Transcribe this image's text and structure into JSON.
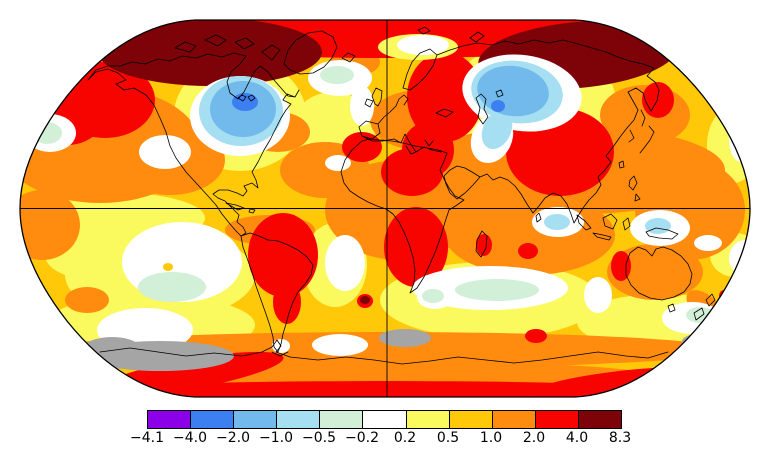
{
  "window": {
    "background": "#FFFFFF"
  },
  "map": {
    "palette": {
      "gold": "#FFC808",
      "yellow": "#FAFA5F",
      "orange": "#FF8C0F",
      "white": "#FFFFFF",
      "mint": "#D2EFD7",
      "cyan": "#A6DFF2",
      "lightblue": "#72BAEB",
      "blue": "#3C7FF0",
      "red": "#F80400",
      "darkred": "#7E0308",
      "gray": "#A5A5A5",
      "coast": "#000000",
      "outline": "#000000",
      "grid": "#000000"
    }
  },
  "colorbar": {
    "tick_labels": [
      "−4.1",
      "−4.0",
      "−2.0",
      "−1.0",
      "−0.5",
      "−0.2",
      "0.2",
      "0.5",
      "1.0",
      "2.0",
      "4.0",
      "8.3"
    ],
    "segment_colors": [
      "#8B00E6",
      "#3C7FF0",
      "#72BAEB",
      "#A6DFF2",
      "#D2EFD7",
      "#FFFFFF",
      "#FAFA5F",
      "#FFC808",
      "#FF8C0F",
      "#F80400",
      "#7E0308"
    ]
  },
  "chart_data": {
    "type": "heatmap",
    "subtype": "filled-contour world map of temperature anomalies",
    "projection": "robinson",
    "title": "",
    "legend_position": "bottom",
    "colorbar_levels": [
      -4.1,
      -4.0,
      -2.0,
      -1.0,
      -0.5,
      -0.2,
      0.2,
      0.5,
      1.0,
      2.0,
      4.0,
      8.3
    ],
    "colorbar_colors": [
      "#8B00E6",
      "#3C7FF0",
      "#72BAEB",
      "#A6DFF2",
      "#D2EFD7",
      "#FFFFFF",
      "#FAFA5F",
      "#FFC808",
      "#FF8C0F",
      "#F80400",
      "#7E0308"
    ],
    "no_data_color": "#A5A5A5",
    "gridlines": "equator and prime meridian only",
    "notable_regions": [
      {
        "region": "Arctic Canada and Greenland",
        "value_bin": "4.0 to 8.3"
      },
      {
        "region": "Arctic Siberia",
        "value_bin": "4.0 to 8.3"
      },
      {
        "region": "Eastern North America / Great Lakes",
        "value_bin": "-4.0 to -1.0"
      },
      {
        "region": "Central Asia near Caspian",
        "value_bin": "-4.0 to -0.5"
      },
      {
        "region": "Eastern Europe",
        "value_bin": "2.0 to 4.0"
      },
      {
        "region": "Mongolia / northern China / Tibet",
        "value_bin": "2.0 to 4.0"
      },
      {
        "region": "Sahara and central Africa",
        "value_bin": "2.0 to 4.0"
      },
      {
        "region": "Southern Africa and Madagascar",
        "value_bin": "2.0 to 4.0"
      },
      {
        "region": "Central South America",
        "value_bin": "2.0 to 4.0"
      },
      {
        "region": "Bering Sea / Alaska",
        "value_bin": "2.0 to 4.0"
      },
      {
        "region": "Western Australia",
        "value_bin": "2.0 to 4.0"
      },
      {
        "region": "Antarctic coastal band",
        "value_bin": "2.0 to 4.0"
      },
      {
        "region": "Most mid-latitude oceans",
        "value_bin": "0.5 to 2.0"
      },
      {
        "region": "Southern ocean patches",
        "value_bin": "-0.5 to 0.2"
      },
      {
        "region": "Areas near Antarctica",
        "value_bin": "no data (gray)"
      }
    ]
  }
}
